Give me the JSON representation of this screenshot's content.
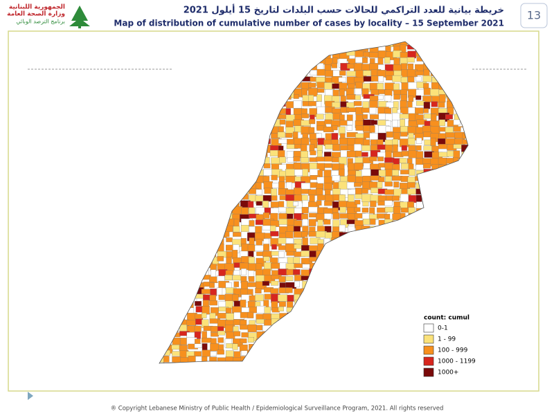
{
  "header": {
    "logo_lines": [
      "الجمهورية اللبنانية",
      "وزارة الصحة العامة",
      "برنامج الترصد الوبائي"
    ],
    "title_ar": "خريطة بيانية للعدد التراكمي للحالات حسب البلدات لتاريخ 15 أيلول 2021",
    "title_en": "Map of distribution of cumulative number of cases by locality – 15 September 2021",
    "page_number": "13"
  },
  "legend": {
    "title": "count: cumul",
    "items": [
      {
        "label": "0-1",
        "color": "#ffffff"
      },
      {
        "label": "1 - 99",
        "color": "#fbe27a"
      },
      {
        "label": "100 - 999",
        "color": "#f7901e"
      },
      {
        "label": "1000 - 1199",
        "color": "#d7261e"
      },
      {
        "label": "1000+",
        "color": "#7a0a0a"
      }
    ]
  },
  "footer": "® Copyright Lebanese Ministry of Public Health / Epidemiological Surveillance Program, 2021. All rights reserved"
}
